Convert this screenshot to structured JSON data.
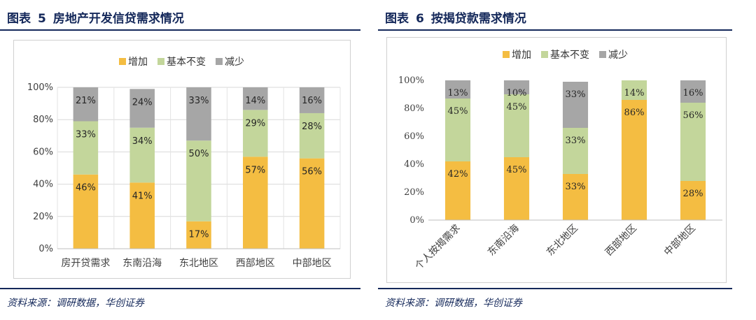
{
  "left": {
    "figure_label": "图表",
    "figure_number": "5",
    "title": "房地产开发信贷需求情况",
    "source": "资料来源：调研数据，华创证券"
  },
  "right": {
    "figure_label": "图表",
    "figure_number": "6",
    "title": "按揭贷款需求情况",
    "source": "资料来源：调研数据，华创证券"
  },
  "colors": {
    "increase": "#f4bd42",
    "unchanged": "#c3d69b",
    "decrease": "#a6a6a6",
    "rule": "#14285a"
  },
  "chart_data": [
    {
      "type": "bar",
      "stacked": true,
      "categories": [
        "房开贷需求",
        "东南沿海",
        "东北地区",
        "西部地区",
        "中部地区"
      ],
      "series": [
        {
          "name": "增加",
          "values": [
            46,
            41,
            17,
            57,
            56
          ],
          "labels": [
            "46%",
            "41%",
            "17%",
            "57%",
            "56%"
          ]
        },
        {
          "name": "基本不变",
          "values": [
            33,
            34,
            50,
            29,
            28
          ],
          "labels": [
            "33%",
            "34%",
            "50%",
            "29%",
            "28%"
          ]
        },
        {
          "name": "减少",
          "values": [
            21,
            24,
            33,
            14,
            16
          ],
          "labels": [
            "21%",
            "24%",
            "33%",
            "14%",
            "16%"
          ]
        }
      ],
      "yticks": [
        "0%",
        "20%",
        "40%",
        "60%",
        "80%",
        "100%"
      ],
      "ylim": [
        0,
        100
      ],
      "grid": true,
      "legend": "top-center"
    },
    {
      "type": "bar",
      "stacked": true,
      "categories": [
        "个人按揭需求",
        "东南沿海",
        "东北地区",
        "西部地区",
        "中部地区"
      ],
      "series": [
        {
          "name": "增加",
          "values": [
            42,
            45,
            33,
            86,
            28
          ],
          "labels": [
            "42%",
            "45%",
            "33%",
            "86%",
            "28%"
          ]
        },
        {
          "name": "基本不变",
          "values": [
            45,
            45,
            33,
            14,
            56
          ],
          "labels": [
            "45%",
            "45%",
            "33%",
            "14%",
            "56%"
          ]
        },
        {
          "name": "减少",
          "values": [
            13,
            10,
            33,
            0,
            16
          ],
          "labels": [
            "13%",
            "10%",
            "33%",
            "",
            "16%"
          ]
        }
      ],
      "yticks": [
        "0%",
        "20%",
        "40%",
        "60%",
        "80%",
        "100%"
      ],
      "ylim": [
        0,
        100
      ],
      "grid": false,
      "legend": "top-center"
    }
  ]
}
